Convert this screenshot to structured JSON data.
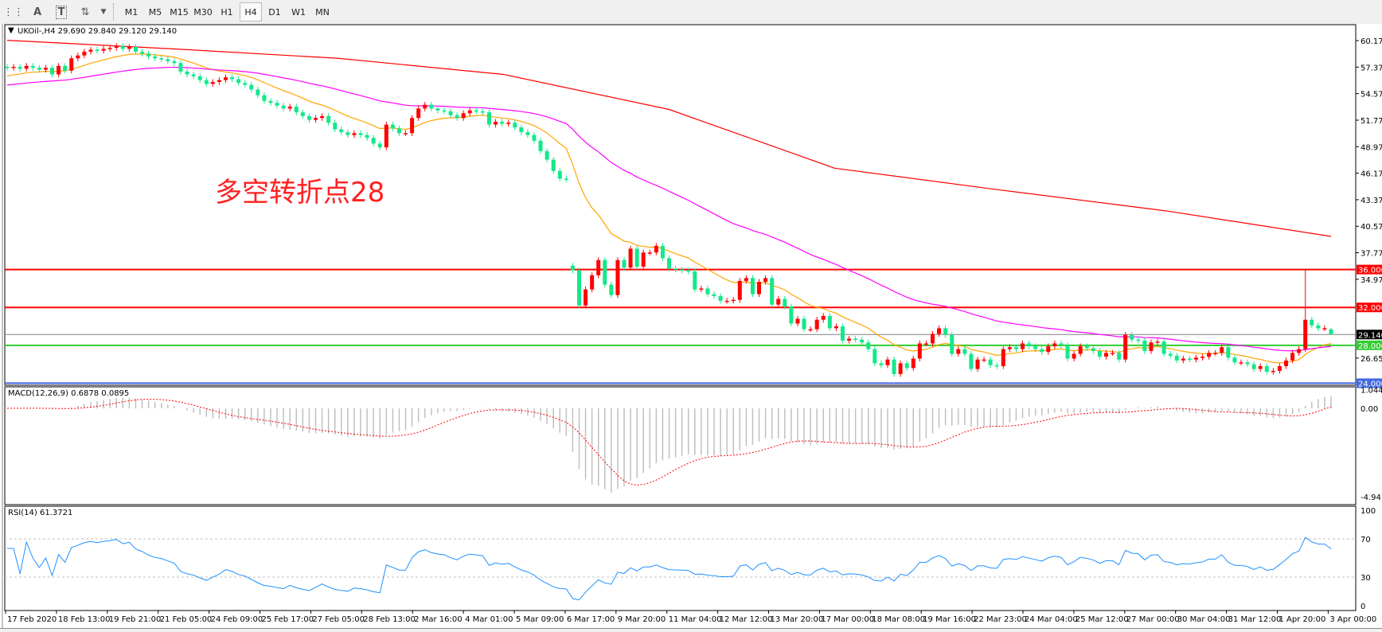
{
  "toolbar": {
    "icons": [
      "grid-icon",
      "text-icon",
      "text-label-icon",
      "arrows-icon",
      "dropdown-icon"
    ],
    "timeframes": [
      "M1",
      "M5",
      "M15",
      "M30",
      "H1",
      "H4",
      "D1",
      "W1",
      "MN"
    ],
    "active_timeframe": "H4"
  },
  "main": {
    "header": "UKOil-,H4  29.690 29.840 29.120 29.140",
    "annotation": "多空转折点28",
    "price_ticks": [
      "60.170",
      "57.370",
      "54.570",
      "51.770",
      "48.970",
      "46.170",
      "43.370",
      "40.570",
      "37.770",
      "34.970",
      "26.650"
    ],
    "price_tick_values": [
      60.17,
      57.37,
      54.57,
      51.77,
      48.97,
      46.17,
      43.37,
      40.57,
      37.77,
      34.97,
      26.65
    ],
    "levels": [
      {
        "label": "36.000",
        "value": 36.0,
        "color": "#ff0000"
      },
      {
        "label": "32.000",
        "value": 32.0,
        "color": "#ff0000"
      },
      {
        "label": "28.000",
        "value": 28.0,
        "color": "#32cd32"
      },
      {
        "label": "24.000",
        "value": 24.0,
        "color": "#4169e1"
      }
    ],
    "current_price": {
      "label": "29.140",
      "value": 29.14,
      "color": "#808080"
    },
    "colors": {
      "bull": "#ff0000",
      "bear": "#13e88a",
      "ma_fast": "#ffa500",
      "ma_mid": "#ff00ff",
      "ma_slow": "#ff0000"
    },
    "closes": [
      57.3,
      57.4,
      57.2,
      57.5,
      57.3,
      57.1,
      57.3,
      56.6,
      57.5,
      57.0,
      58.3,
      58.6,
      59.0,
      59.2,
      59.1,
      59.3,
      59.4,
      59.6,
      59.3,
      59.5,
      59.0,
      58.8,
      58.5,
      58.3,
      58.2,
      58.0,
      57.8,
      56.9,
      56.6,
      56.4,
      56.0,
      55.6,
      55.8,
      56.0,
      56.3,
      56.1,
      55.7,
      55.5,
      55.0,
      54.4,
      53.8,
      53.6,
      53.3,
      53.0,
      53.2,
      52.6,
      52.2,
      51.8,
      52.0,
      52.2,
      51.5,
      50.8,
      50.5,
      50.2,
      50.4,
      50.2,
      49.9,
      49.3,
      48.9,
      51.3,
      50.9,
      50.4,
      50.4,
      52.0,
      53.0,
      53.4,
      53.0,
      52.8,
      52.7,
      52.3,
      52.0,
      52.5,
      52.8,
      52.7,
      52.6,
      51.3,
      51.6,
      51.4,
      51.5,
      51.0,
      50.5,
      50.2,
      49.6,
      48.5,
      47.6,
      46.4,
      45.6,
      45.5,
      35.9,
      32.2,
      33.9,
      35.4,
      37.0,
      34.4,
      33.3,
      37.0,
      36.2,
      38.2,
      36.3,
      37.8,
      37.8,
      38.5,
      37.2,
      36.1,
      36.0,
      35.9,
      35.8,
      33.9,
      34.0,
      33.4,
      33.2,
      32.7,
      32.7,
      32.8,
      34.8,
      35.1,
      33.4,
      34.7,
      35.1,
      32.3,
      32.9,
      32.1,
      30.3,
      30.8,
      29.7,
      29.7,
      30.7,
      31.1,
      29.8,
      30.0,
      28.5,
      28.7,
      28.6,
      28.3,
      27.6,
      26.1,
      25.9,
      26.5,
      24.97,
      26.1,
      25.6,
      26.6,
      28.2,
      28.2,
      29.2,
      29.8,
      29.1,
      27.1,
      27.6,
      27.1,
      25.5,
      26.5,
      26.5,
      25.9,
      25.8,
      27.6,
      27.8,
      27.6,
      28.2,
      27.9,
      27.6,
      27.3,
      27.9,
      28.2,
      28.0,
      26.6,
      27.1,
      27.9,
      27.7,
      27.4,
      26.8,
      27.2,
      27.2,
      26.5,
      29.1,
      28.6,
      28.5,
      27.4,
      28.3,
      28.4,
      27.1,
      26.9,
      26.4,
      26.6,
      26.5,
      26.7,
      26.8,
      27.2,
      27.2,
      27.8,
      26.7,
      26.2,
      26.2,
      26.0,
      25.5,
      25.8,
      25.2,
      25.3,
      25.8,
      26.4,
      27.2,
      27.6,
      30.7,
      30.1,
      29.8,
      29.8,
      29.14
    ],
    "first_open": 57.4,
    "gap_open": 36.4,
    "spike_high": 36.0,
    "last_bar": {
      "open": 29.69,
      "high": 29.84,
      "low": 29.12,
      "close": 29.14
    },
    "ma_fast": {
      "type": "EMA",
      "period": 14,
      "start": 56.3
    },
    "ma_mid": {
      "type": "EMA",
      "period": 50,
      "start": 55.4
    },
    "ma_slow_values": [
      60.2,
      59.3,
      58.3,
      56.6,
      52.9,
      46.7,
      44.4,
      42.2,
      39.5
    ]
  },
  "macd": {
    "label": "MACD(12,26,9) 0.6878 0.0895",
    "ticks": [
      "1.0446",
      "0.00",
      "-4.9417"
    ],
    "tick_values": [
      1.0446,
      0,
      -4.9417
    ],
    "fast": 12,
    "slow": 26,
    "signal": 9
  },
  "rsi": {
    "label": "RSI(14) 61.3721",
    "ticks": [
      "100",
      "70",
      "30",
      "0"
    ],
    "tick_values": [
      100,
      70,
      30,
      0
    ],
    "period": 14
  },
  "xaxis": {
    "labels": [
      "17 Feb 2020",
      "18 Feb 13:00",
      "19 Feb 21:00",
      "21 Feb 05:00",
      "24 Feb 09:00",
      "25 Feb 17:00",
      "27 Feb 05:00",
      "28 Feb 13:00",
      "2 Mar 16:00",
      "4 Mar 01:00",
      "5 Mar 09:00",
      "6 Mar 17:00",
      "9 Mar 20:00",
      "11 Mar 04:00",
      "12 Mar 12:00",
      "13 Mar 20:00",
      "17 Mar 00:00",
      "18 Mar 08:00",
      "19 Mar 16:00",
      "22 Mar 23:00",
      "24 Mar 04:00",
      "25 Mar 12:00",
      "27 Mar 00:00",
      "30 Mar 04:00",
      "31 Mar 12:00",
      "1 Apr 20:00",
      "3 Apr 00:00"
    ]
  }
}
